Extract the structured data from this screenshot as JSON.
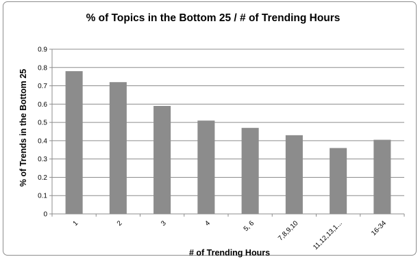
{
  "chart_data": {
    "type": "bar",
    "title": "% of Topics in the Bottom 25 / # of Trending Hours",
    "xlabel": "# of Trending Hours",
    "ylabel": "% of Trends in the Bottom 25",
    "categories": [
      "1",
      "2",
      "3",
      "4",
      "5, 6",
      "7,8,9,10",
      "11,12,13,1...",
      "16-34"
    ],
    "values": [
      0.78,
      0.72,
      0.59,
      0.51,
      0.47,
      0.43,
      0.36,
      0.405
    ],
    "ylim": [
      0,
      0.9
    ],
    "yticks": [
      "0",
      "0.1",
      "0.2",
      "0.3",
      "0.4",
      "0.5",
      "0.6",
      "0.7",
      "0.8",
      "0.9"
    ],
    "grid": true,
    "legend": "none",
    "bar_color": "#8c8c8c",
    "grid_color": "#8c8c8c"
  }
}
